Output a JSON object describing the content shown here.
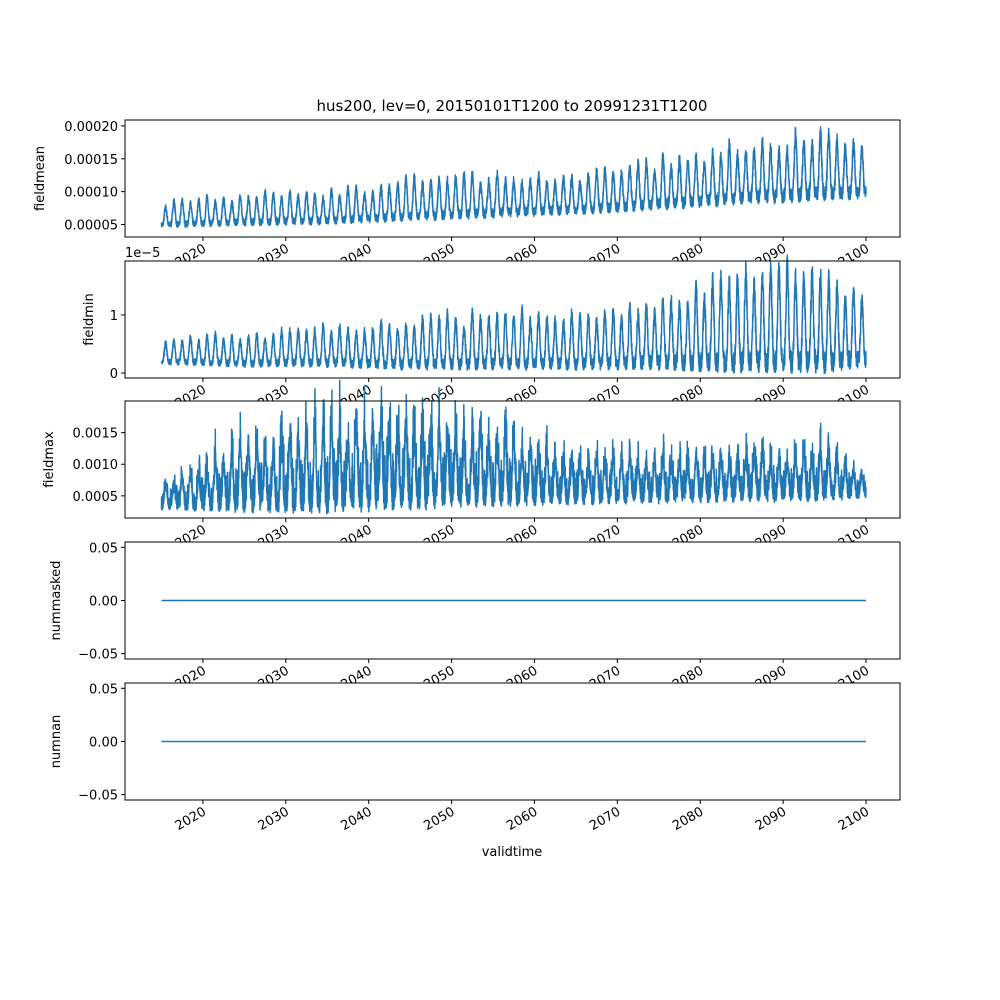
{
  "chart_data": {
    "type": "line",
    "title": "hus200, lev=0, 20150101T1200 to 20991231T1200",
    "xlabel": "validtime",
    "xlim": [
      2010.6,
      2104.1
    ],
    "xticks": [
      "2020",
      "2030",
      "2040",
      "2050",
      "2060",
      "2070",
      "2080",
      "2090",
      "2100"
    ],
    "xtick_values": [
      2020,
      2030,
      2040,
      2050,
      2060,
      2070,
      2080,
      2090,
      2100
    ],
    "x_range": [
      2015,
      2100
    ],
    "line_color": "#1f77b4",
    "envelope_years": [
      2015,
      2025,
      2035,
      2045,
      2055,
      2065,
      2075,
      2085,
      2095,
      2100
    ],
    "panels": [
      {
        "ylabel": "fieldmean",
        "ylim": [
          3.1e-05,
          0.000209
        ],
        "yticks": [
          5e-05,
          0.0001,
          0.00015,
          0.0002
        ],
        "ytick_labels": [
          "0.00005",
          "0.00010",
          "0.00015",
          "0.00020"
        ],
        "offset": "",
        "low": [
          4.5e-05,
          4.8e-05,
          5e-05,
          5.5e-05,
          6e-05,
          6.5e-05,
          7.2e-05,
          8e-05,
          8.5e-05,
          9e-05
        ],
        "high": [
          8e-05,
          9e-05,
          9.5e-05,
          0.00011,
          0.00012,
          0.00012,
          0.00014,
          0.00016,
          0.00018,
          0.00016
        ]
      },
      {
        "ylabel": "fieldmin",
        "ylim": [
          -0.086,
          1.93
        ],
        "yticks": [
          0,
          1
        ],
        "ytick_labels": [
          "0",
          "1"
        ],
        "offset": "1e−5",
        "low": [
          0.15,
          0.1,
          0.1,
          0.05,
          0.05,
          0.05,
          0.05,
          0.0,
          0.0,
          0.1
        ],
        "high": [
          0.55,
          0.6,
          0.7,
          0.8,
          0.9,
          0.9,
          1.1,
          1.5,
          1.6,
          1.2
        ]
      },
      {
        "ylabel": "fieldmax",
        "ylim": [
          0.00015,
          0.002
        ],
        "yticks": [
          0.0005,
          0.001,
          0.0015
        ],
        "ytick_labels": [
          "0.0005",
          "0.0010",
          "0.0015"
        ],
        "offset": "",
        "low": [
          0.0003,
          0.0003,
          0.0003,
          0.00035,
          0.0004,
          0.0004,
          0.00042,
          0.00045,
          0.00045,
          0.0005
        ],
        "high": [
          0.0006,
          0.0012,
          0.0014,
          0.0015,
          0.0013,
          0.001,
          0.001,
          0.0011,
          0.0011,
          0.0008
        ]
      },
      {
        "ylabel": "nummasked",
        "ylim": [
          -0.055,
          0.055
        ],
        "yticks": [
          -0.05,
          0,
          0.05
        ],
        "ytick_labels": [
          "−0.05",
          "0.00",
          "0.05"
        ],
        "offset": "",
        "constant": 0
      },
      {
        "ylabel": "numnan",
        "ylim": [
          -0.055,
          0.055
        ],
        "yticks": [
          -0.05,
          0,
          0.05
        ],
        "ytick_labels": [
          "−0.05",
          "0.00",
          "0.05"
        ],
        "offset": "",
        "constant": 0
      }
    ]
  }
}
